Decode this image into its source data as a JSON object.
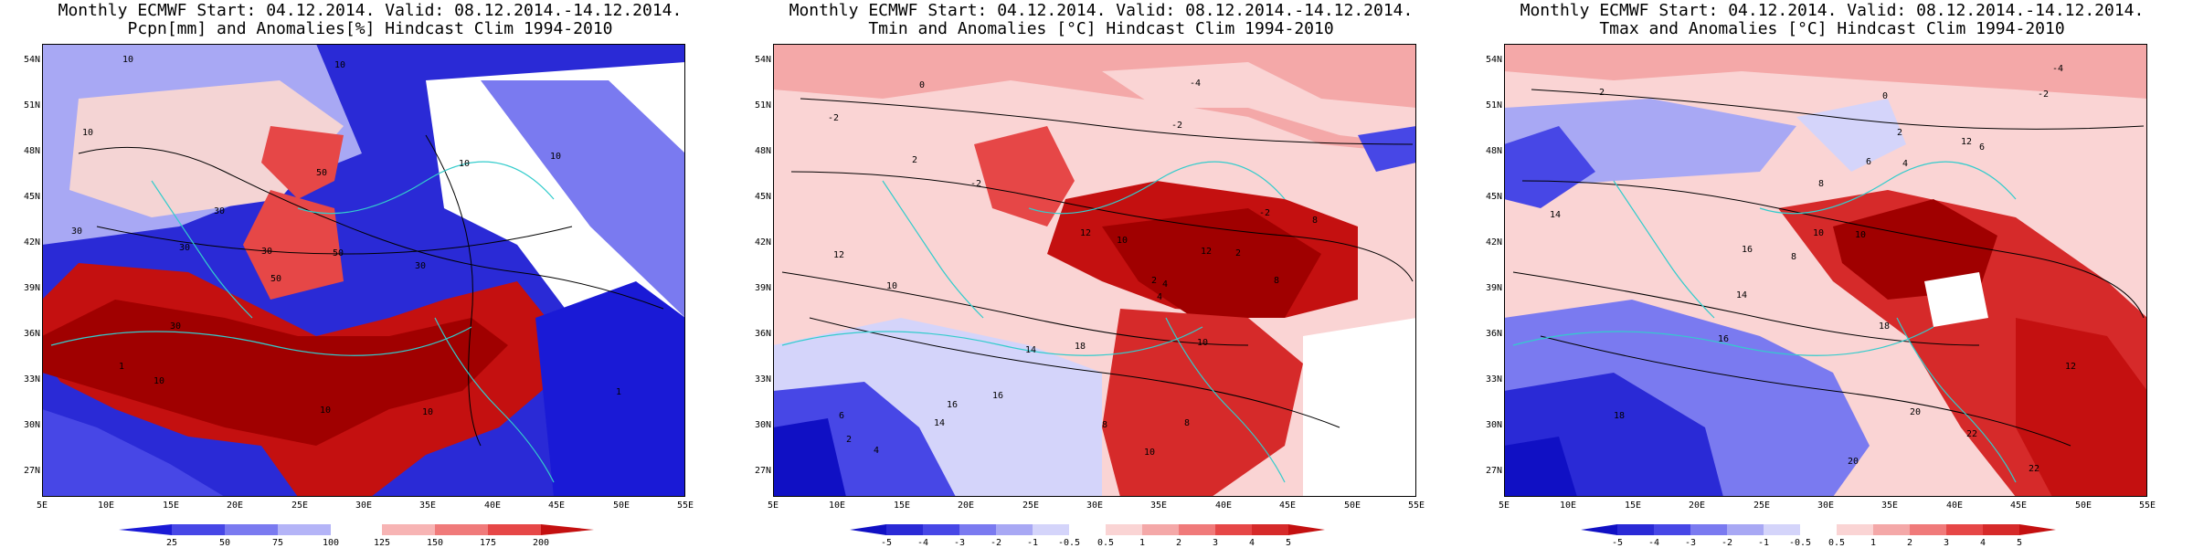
{
  "panels": [
    {
      "title_line1": "Monthly ECMWF Start: 04.12.2014. Valid: 08.12.2014.-14.12.2014.",
      "title_line2": "Pcpn[mm] and Anomalies[%] Hindcast Clim 1994-2010",
      "colorbar_ticks": [
        "25",
        "50",
        "75",
        "100",
        "125",
        "150",
        "175",
        "200"
      ],
      "colorbar_colors": [
        "#1a1ad6",
        "#4747e6",
        "#7a7af0",
        "#b4b4f7",
        "#ffffff",
        "#f7b4b4",
        "#f07a7a",
        "#e64747",
        "#c41010"
      ],
      "contour_labels": [
        "10",
        "10",
        "10",
        "10",
        "30",
        "30",
        "30",
        "30",
        "30",
        "30",
        "50",
        "50",
        "50",
        "10",
        "10",
        "1",
        "1",
        "10",
        "10"
      ]
    },
    {
      "title_line1": "Monthly ECMWF Start: 04.12.2014. Valid: 08.12.2014.-14.12.2014.",
      "title_line2": "Tmin and Anomalies [°C] Hindcast Clim 1994-2010",
      "colorbar_ticks": [
        "-5",
        "-4",
        "-3",
        "-2",
        "-1",
        "-0.5",
        "0.5",
        "1",
        "2",
        "3",
        "4",
        "5"
      ],
      "colorbar_colors": [
        "#1010c4",
        "#2a2ad6",
        "#4747e6",
        "#7a7af0",
        "#a8a8f4",
        "#d4d4fa",
        "#ffffff",
        "#fad4d4",
        "#f4a8a8",
        "#f07a7a",
        "#e64747",
        "#d62a2a",
        "#c41010"
      ],
      "contour_labels": [
        "0",
        "-4",
        "-2",
        "-2",
        "-2",
        "2",
        "12",
        "10",
        "12",
        "14",
        "16",
        "18",
        "6",
        "8",
        "10",
        "8",
        "2",
        "4",
        "8",
        "-2",
        "10",
        "12",
        "10",
        "8",
        "4",
        "2",
        "16",
        "14",
        "2",
        "4"
      ]
    },
    {
      "title_line1": "Monthly ECMWF Start: 04.12.2014. Valid: 08.12.2014.-14.12.2014.",
      "title_line2": "Tmax and Anomalies [°C] Hindcast Clim 1994-2010",
      "colorbar_ticks": [
        "-5",
        "-4",
        "-3",
        "-2",
        "-1",
        "-0.5",
        "0.5",
        "1",
        "2",
        "3",
        "4",
        "5"
      ],
      "colorbar_colors": [
        "#1010c4",
        "#2a2ad6",
        "#4747e6",
        "#7a7af0",
        "#a8a8f4",
        "#d4d4fa",
        "#ffffff",
        "#fad4d4",
        "#f4a8a8",
        "#f07a7a",
        "#e64747",
        "#d62a2a",
        "#c41010"
      ],
      "contour_labels": [
        "-4",
        "-2",
        "0",
        "2",
        "6",
        "8",
        "10",
        "12",
        "14",
        "16",
        "18",
        "20",
        "22",
        "2",
        "4",
        "6",
        "8",
        "10",
        "12",
        "14",
        "16",
        "18",
        "20",
        "22"
      ]
    }
  ],
  "axes": {
    "lat_labels": [
      "54N",
      "51N",
      "48N",
      "45N",
      "42N",
      "39N",
      "36N",
      "33N",
      "30N",
      "27N"
    ],
    "lon_labels": [
      "5E",
      "10E",
      "15E",
      "20E",
      "25E",
      "30E",
      "35E",
      "40E",
      "45E",
      "50E",
      "55E"
    ]
  },
  "colors": {
    "land_outline": "#33cccc",
    "contour": "#000000",
    "frame": "#000000"
  }
}
